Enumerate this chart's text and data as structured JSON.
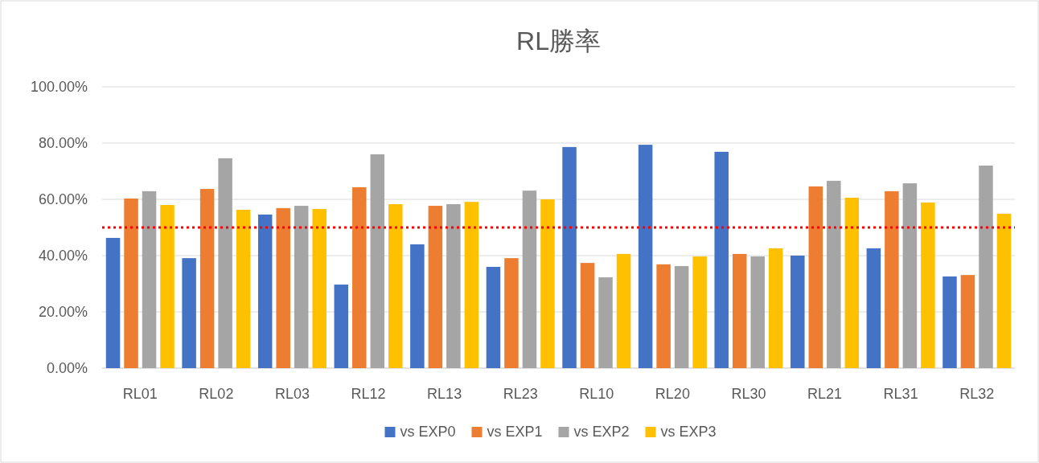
{
  "chart_data": {
    "type": "bar",
    "title": "RL勝率",
    "categories": [
      "RL01",
      "RL02",
      "RL03",
      "RL12",
      "RL13",
      "RL23",
      "RL10",
      "RL20",
      "RL30",
      "RL21",
      "RL31",
      "RL32"
    ],
    "series": [
      {
        "name": "vs EXP0",
        "color": "#4472c4",
        "values": [
          46.3,
          39.1,
          54.6,
          29.7,
          44,
          36,
          78.6,
          79.4,
          76.9,
          40,
          42.6,
          32.6
        ]
      },
      {
        "name": "vs EXP1",
        "color": "#ed7d31",
        "values": [
          60.3,
          63.7,
          56.9,
          64.3,
          57.7,
          39.1,
          37.4,
          36.9,
          40.6,
          64.6,
          62.9,
          33.1
        ]
      },
      {
        "name": "vs EXP2",
        "color": "#a5a5a5",
        "values": [
          62.9,
          74.6,
          57.7,
          76,
          58.3,
          63.1,
          32.3,
          36.3,
          39.7,
          66.6,
          65.7,
          72
        ]
      },
      {
        "name": "vs EXP3",
        "color": "#ffc000",
        "values": [
          58,
          56.3,
          56.6,
          58.3,
          59.1,
          60,
          40.6,
          39.7,
          42.6,
          60.6,
          58.9,
          54.9
        ]
      }
    ],
    "ylim": [
      0,
      100
    ],
    "yticks": [
      {
        "value": 0,
        "label": "0.00%"
      },
      {
        "value": 20,
        "label": "20.00%"
      },
      {
        "value": 40,
        "label": "40.00%"
      },
      {
        "value": 60,
        "label": "60.00%"
      },
      {
        "value": 80,
        "label": "80.00%"
      },
      {
        "value": 100,
        "label": "100.00%"
      }
    ],
    "grid": "y",
    "legend": "bottom",
    "ref_lines": [
      {
        "axis": "y",
        "value": 50,
        "color": "#ff0000",
        "line_style": "dotted"
      }
    ]
  }
}
